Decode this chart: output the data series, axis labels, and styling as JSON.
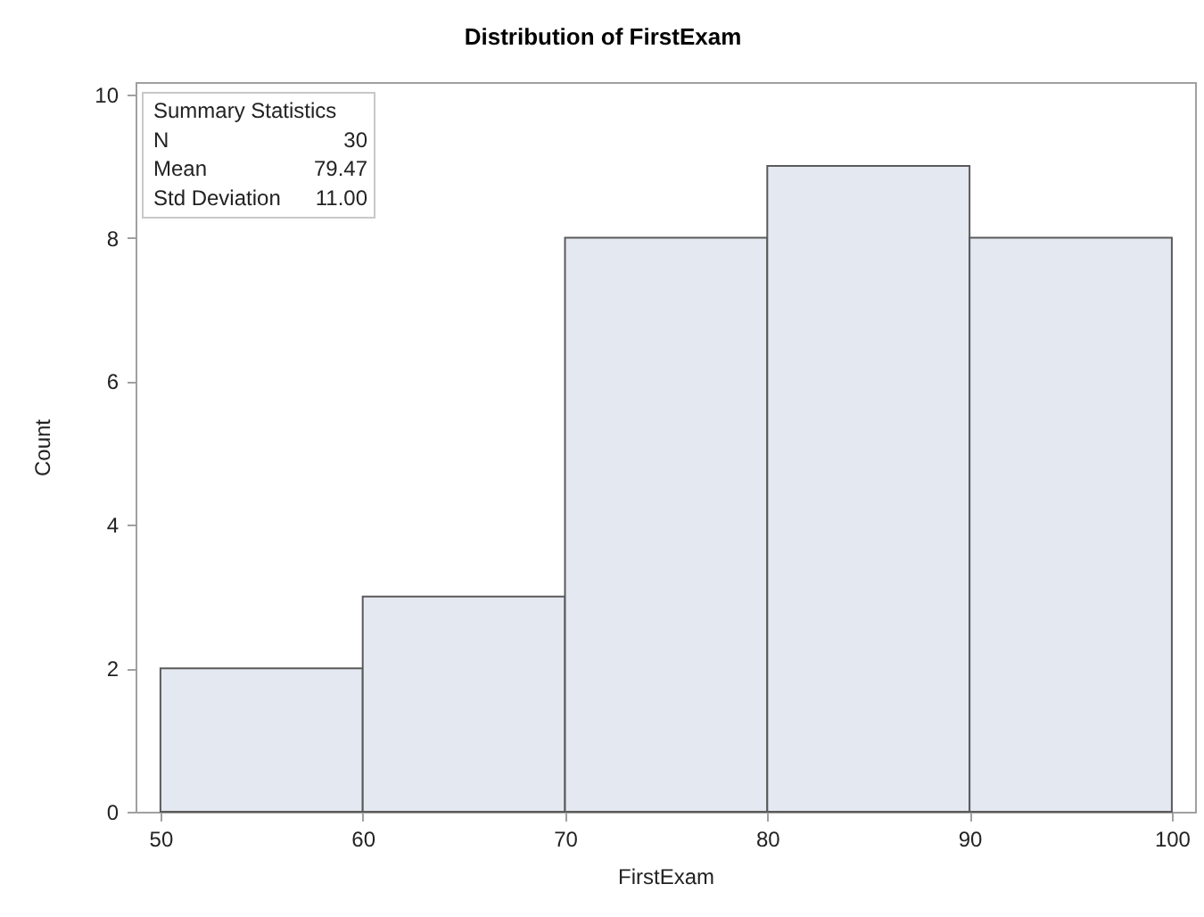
{
  "chart_data": {
    "type": "histogram",
    "title": "Distribution of FirstExam",
    "xlabel": "FirstExam",
    "ylabel": "Count",
    "bins": [
      50,
      60,
      70,
      80,
      90,
      100
    ],
    "values": [
      2,
      3,
      8,
      9,
      8
    ],
    "color": "#e4e8f1",
    "xlim": [
      48.77,
      101.15
    ],
    "xticks": [
      50,
      60,
      70,
      80,
      90,
      100
    ],
    "ylim": [
      0,
      10.17
    ],
    "yticks": [
      0,
      2,
      4,
      6,
      8,
      10
    ],
    "grid": false,
    "annotations": [
      "Summary Statistics",
      "N",
      "30",
      "Mean",
      "79.47",
      "Std Deviation",
      "11.00"
    ]
  }
}
